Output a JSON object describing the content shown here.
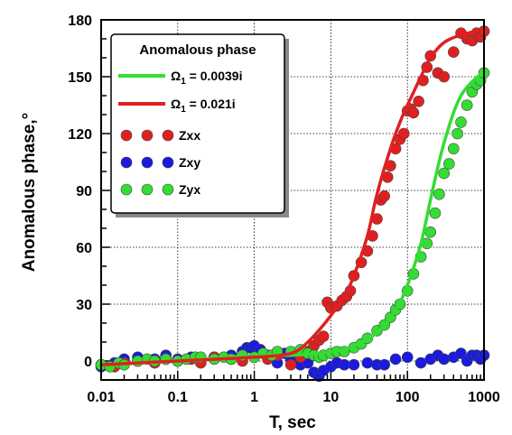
{
  "chart_data": {
    "type": "scatter",
    "xlabel": "T, sec",
    "ylabel": "Anomalous phase,°",
    "xscale": "log",
    "xlim": [
      0.01,
      1000
    ],
    "ylim": [
      -10,
      180
    ],
    "xticks": [
      0.01,
      0.1,
      1,
      10,
      100,
      1000
    ],
    "xtick_labels": [
      "0.01",
      "0.1",
      "1",
      "10",
      "100",
      "1000"
    ],
    "yticks": [
      0,
      30,
      60,
      90,
      120,
      150,
      180
    ],
    "ytick_labels": [
      "0",
      "30",
      "60",
      "90",
      "120",
      "150",
      "180"
    ],
    "grid": "dotted",
    "legend": {
      "title": "Anomalous phase",
      "placement": "top-left",
      "line_entries": [
        {
          "sym": "Ω",
          "sub": "1",
          "rest": " = 0.0039i",
          "color": "#33dd33"
        },
        {
          "sym": "Ω",
          "sub": "1",
          "rest": " = 0.021i",
          "color": "#e02020"
        }
      ],
      "marker_entries": [
        {
          "label": "Zxx",
          "color": "#e02020"
        },
        {
          "label": "Zxy",
          "color": "#1a1ae0"
        },
        {
          "label": "Zyx",
          "color": "#33dd33"
        }
      ]
    },
    "lines": [
      {
        "name": "Ω₁ = 0.0039i",
        "color": "#33dd33",
        "x": [
          0.01,
          0.1,
          1,
          3,
          10,
          20,
          40,
          70,
          100,
          150,
          200,
          300,
          500,
          1000
        ],
        "y": [
          -2,
          0,
          3,
          3,
          5,
          8,
          15,
          27,
          40,
          62,
          85,
          115,
          140,
          153
        ]
      },
      {
        "name": "Ω₁ = 0.021i",
        "color": "#e02020",
        "x": [
          0.01,
          0.1,
          1,
          3,
          5,
          8,
          10,
          15,
          20,
          30,
          40,
          60,
          80,
          100,
          150,
          200,
          300,
          500,
          1000
        ],
        "y": [
          -2,
          0,
          2,
          4,
          10,
          19,
          24,
          34,
          45,
          66,
          88,
          112,
          126,
          135,
          150,
          160,
          168,
          172,
          175
        ]
      }
    ],
    "series": [
      {
        "name": "Zxx",
        "color": "#e02020",
        "x": [
          0.01,
          0.015,
          0.02,
          0.03,
          0.05,
          0.07,
          0.1,
          0.15,
          0.2,
          0.3,
          0.5,
          0.7,
          1,
          1.5,
          2,
          3,
          4,
          5,
          6,
          7,
          8,
          9,
          10,
          12,
          14,
          16,
          18,
          20,
          25,
          30,
          35,
          40,
          45,
          50,
          55,
          60,
          70,
          80,
          90,
          100,
          110,
          120,
          140,
          160,
          180,
          200,
          250,
          300,
          400,
          500,
          600,
          700,
          800,
          900,
          1000
        ],
        "y": [
          -2,
          -3,
          -1,
          0,
          -1,
          1,
          0,
          1,
          -1,
          2,
          1,
          0,
          2,
          1,
          3,
          -2,
          2,
          5,
          8,
          11,
          13,
          31,
          28,
          29,
          32,
          34,
          37,
          45,
          52,
          58,
          66,
          75,
          85,
          87,
          97,
          103,
          112,
          117,
          120,
          132,
          133,
          131,
          137,
          148,
          155,
          161,
          152,
          150,
          163,
          173,
          170,
          169,
          173,
          171,
          174
        ]
      },
      {
        "name": "Zxy",
        "color": "#1a1ae0",
        "x": [
          0.01,
          0.015,
          0.02,
          0.03,
          0.05,
          0.07,
          0.1,
          0.15,
          0.2,
          0.3,
          0.5,
          0.7,
          0.8,
          0.9,
          1,
          1.2,
          1.5,
          2,
          2.5,
          3,
          4,
          5,
          6,
          7,
          8,
          10,
          12,
          15,
          20,
          30,
          40,
          50,
          70,
          100,
          150,
          200,
          250,
          300,
          400,
          500,
          600,
          700,
          800,
          900,
          1000
        ],
        "y": [
          -3,
          -1,
          1,
          2,
          1,
          3,
          1,
          2,
          0,
          2,
          3,
          5,
          7,
          7,
          8,
          6,
          3,
          -1,
          4,
          1,
          -2,
          -1,
          -6,
          -8,
          -5,
          -3,
          -1,
          -2,
          -2,
          -1,
          -2,
          -2,
          1,
          2,
          -1,
          1,
          3,
          1,
          2,
          4,
          0,
          3,
          3,
          1,
          3
        ]
      },
      {
        "name": "Zyx",
        "color": "#33dd33",
        "x": [
          0.01,
          0.013,
          0.017,
          0.02,
          0.03,
          0.04,
          0.05,
          0.07,
          0.1,
          0.13,
          0.17,
          0.2,
          0.3,
          0.4,
          0.5,
          0.7,
          1,
          1.3,
          1.7,
          2,
          3,
          4,
          5,
          6,
          7,
          8,
          10,
          12,
          15,
          20,
          25,
          30,
          40,
          50,
          60,
          70,
          80,
          100,
          120,
          150,
          180,
          200,
          230,
          260,
          300,
          350,
          400,
          450,
          500,
          600,
          700,
          800,
          900,
          1000
        ],
        "y": [
          -2,
          -3,
          -1,
          -2,
          0,
          1,
          0,
          1,
          0,
          1,
          2,
          2,
          1,
          2,
          1,
          3,
          2,
          4,
          3,
          5,
          5,
          6,
          4,
          3,
          2,
          3,
          4,
          5,
          5,
          7,
          9,
          12,
          16,
          19,
          23,
          27,
          30,
          37,
          46,
          55,
          62,
          68,
          78,
          88,
          99,
          104,
          112,
          120,
          126,
          135,
          142,
          146,
          148,
          152
        ]
      }
    ]
  }
}
